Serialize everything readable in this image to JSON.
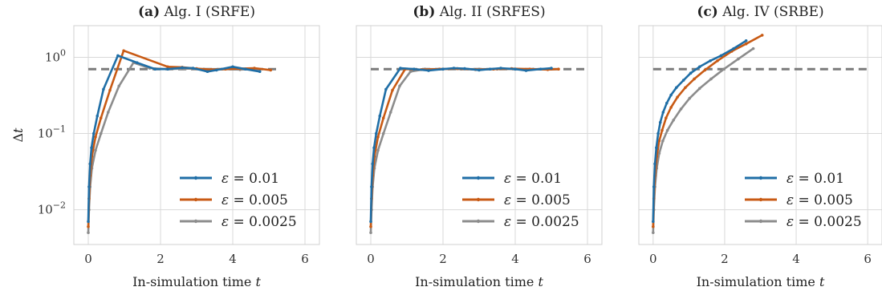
{
  "colors": {
    "eps_0_01": "#1f6ea6",
    "eps_0_005": "#c85a14",
    "eps_0_0025": "#8c8c8c",
    "reference": "#7a7a7a"
  },
  "chart_data": [
    {
      "type": "line",
      "title_bold": "(a)",
      "title_rest": " Alg. I (SRFE)",
      "xlabel": "In-simulation time t",
      "ylabel": "Δt",
      "x_scale": "linear",
      "y_scale": "log",
      "xlim": [
        -0.4,
        6.4
      ],
      "ylim": [
        0.0035,
        2.6
      ],
      "xticks": [
        0,
        2,
        4,
        6
      ],
      "yticks": [
        {
          "value": 0.01,
          "label": "10^-2"
        },
        {
          "value": 0.1,
          "label": "10^-1"
        },
        {
          "value": 1,
          "label": "10^0"
        }
      ],
      "grid": true,
      "legend_position": "lower-right",
      "reference_line": {
        "y": 0.7,
        "style": "dashed",
        "x_range": [
          0,
          5.3
        ]
      },
      "series": [
        {
          "name": "ε = 0.01",
          "color_key": "eps_0_01",
          "x": [
            0,
            0.02,
            0.05,
            0.09,
            0.15,
            0.25,
            0.42,
            0.82,
            1.35,
            1.85,
            2.2,
            2.6,
            2.9,
            3.3,
            3.55,
            4.0,
            4.35,
            4.75
          ],
          "y": [
            0.007,
            0.02,
            0.04,
            0.065,
            0.1,
            0.17,
            0.38,
            1.05,
            0.85,
            0.7,
            0.7,
            0.73,
            0.72,
            0.65,
            0.68,
            0.75,
            0.7,
            0.65
          ]
        },
        {
          "name": "ε = 0.005",
          "color_key": "eps_0_005",
          "x": [
            0,
            0.02,
            0.05,
            0.1,
            0.2,
            0.35,
            0.6,
            0.98,
            2.2,
            2.6,
            3.0,
            3.4,
            3.8,
            4.2,
            4.6,
            5.05
          ],
          "y": [
            0.006,
            0.014,
            0.028,
            0.05,
            0.09,
            0.16,
            0.37,
            1.22,
            0.75,
            0.74,
            0.71,
            0.69,
            0.7,
            0.71,
            0.72,
            0.68
          ]
        },
        {
          "name": "ε = 0.0025",
          "color_key": "eps_0_0025",
          "x": [
            0,
            0.02,
            0.05,
            0.1,
            0.2,
            0.35,
            0.55,
            0.85,
            1.25,
            1.7,
            2.2,
            2.7,
            3.2,
            3.7,
            4.2,
            4.7
          ],
          "y": [
            0.005,
            0.01,
            0.02,
            0.035,
            0.06,
            0.1,
            0.19,
            0.42,
            0.85,
            0.72,
            0.7,
            0.71,
            0.7,
            0.7,
            0.69,
            0.7
          ]
        }
      ]
    },
    {
      "type": "line",
      "title_bold": "(b)",
      "title_rest": " Alg. II (SRFES)",
      "xlabel": "In-simulation time t",
      "ylabel": "",
      "x_scale": "linear",
      "y_scale": "log",
      "xlim": [
        -0.4,
        6.4
      ],
      "ylim": [
        0.0035,
        2.6
      ],
      "xticks": [
        0,
        2,
        4,
        6
      ],
      "yticks": [
        {
          "value": 0.01,
          "label": "10^-2"
        },
        {
          "value": 0.1,
          "label": "10^-1"
        },
        {
          "value": 1,
          "label": "10^0"
        }
      ],
      "grid": true,
      "legend_position": "lower-right",
      "reference_line": {
        "y": 0.7,
        "style": "dashed",
        "x_range": [
          0,
          6
        ]
      },
      "series": [
        {
          "name": "ε = 0.01",
          "color_key": "eps_0_01",
          "x": [
            0,
            0.02,
            0.05,
            0.09,
            0.15,
            0.25,
            0.42,
            0.82,
            1.2,
            1.6,
            2.0,
            2.3,
            2.6,
            3.0,
            3.3,
            3.6,
            4.0,
            4.3,
            4.7,
            5.0
          ],
          "y": [
            0.007,
            0.02,
            0.04,
            0.065,
            0.1,
            0.17,
            0.38,
            0.72,
            0.7,
            0.67,
            0.7,
            0.72,
            0.71,
            0.68,
            0.7,
            0.72,
            0.7,
            0.67,
            0.7,
            0.72
          ]
        },
        {
          "name": "ε = 0.005",
          "color_key": "eps_0_005",
          "x": [
            0,
            0.02,
            0.05,
            0.1,
            0.2,
            0.35,
            0.6,
            0.95,
            1.4,
            1.9,
            2.4,
            2.9,
            3.4,
            3.9,
            4.4,
            4.9,
            5.2
          ],
          "y": [
            0.006,
            0.014,
            0.028,
            0.05,
            0.09,
            0.16,
            0.37,
            0.7,
            0.69,
            0.7,
            0.71,
            0.69,
            0.7,
            0.71,
            0.7,
            0.69,
            0.7
          ]
        },
        {
          "name": "ε = 0.0025",
          "color_key": "eps_0_0025",
          "x": [
            0,
            0.02,
            0.05,
            0.1,
            0.2,
            0.35,
            0.55,
            0.8,
            1.1,
            1.5,
            2.0,
            2.5,
            3.0,
            3.5,
            4.0,
            4.5,
            5.0
          ],
          "y": [
            0.005,
            0.01,
            0.02,
            0.035,
            0.06,
            0.1,
            0.19,
            0.42,
            0.65,
            0.7,
            0.7,
            0.7,
            0.7,
            0.7,
            0.7,
            0.7,
            0.7
          ]
        }
      ]
    },
    {
      "type": "line",
      "title_bold": "(c)",
      "title_rest": " Alg. IV (SRBE)",
      "xlabel": "In-simulation time t",
      "ylabel": "",
      "x_scale": "linear",
      "y_scale": "log",
      "xlim": [
        -0.4,
        6.4
      ],
      "ylim": [
        0.0035,
        2.6
      ],
      "xticks": [
        0,
        2,
        4,
        6
      ],
      "yticks": [
        {
          "value": 0.01,
          "label": "10^-2"
        },
        {
          "value": 0.1,
          "label": "10^-1"
        },
        {
          "value": 1,
          "label": "10^0"
        }
      ],
      "grid": true,
      "legend_position": "lower-right",
      "reference_line": {
        "y": 0.7,
        "style": "dashed",
        "x_range": [
          0,
          6
        ]
      },
      "series": [
        {
          "name": "ε = 0.01",
          "color_key": "eps_0_01",
          "x": [
            0,
            0.02,
            0.05,
            0.09,
            0.14,
            0.2,
            0.28,
            0.38,
            0.5,
            0.65,
            0.85,
            1.05,
            1.3,
            1.6,
            1.9,
            2.25,
            2.6
          ],
          "y": [
            0.007,
            0.02,
            0.04,
            0.065,
            0.1,
            0.14,
            0.19,
            0.25,
            0.32,
            0.4,
            0.5,
            0.62,
            0.75,
            0.9,
            1.05,
            1.3,
            1.65
          ]
        },
        {
          "name": "ε = 0.005",
          "color_key": "eps_0_005",
          "x": [
            0,
            0.02,
            0.05,
            0.1,
            0.17,
            0.25,
            0.36,
            0.5,
            0.68,
            0.9,
            1.15,
            1.45,
            1.8,
            2.2,
            2.6,
            3.05
          ],
          "y": [
            0.006,
            0.014,
            0.028,
            0.05,
            0.08,
            0.11,
            0.16,
            0.22,
            0.3,
            0.4,
            0.52,
            0.68,
            0.9,
            1.2,
            1.5,
            1.95
          ]
        },
        {
          "name": "ε = 0.0025",
          "color_key": "eps_0_0025",
          "x": [
            0,
            0.02,
            0.05,
            0.1,
            0.17,
            0.27,
            0.4,
            0.57,
            0.78,
            1.02,
            1.3,
            1.62,
            1.98,
            2.38,
            2.8
          ],
          "y": [
            0.005,
            0.01,
            0.02,
            0.035,
            0.055,
            0.08,
            0.11,
            0.15,
            0.21,
            0.29,
            0.39,
            0.52,
            0.7,
            0.95,
            1.3
          ]
        }
      ]
    }
  ]
}
